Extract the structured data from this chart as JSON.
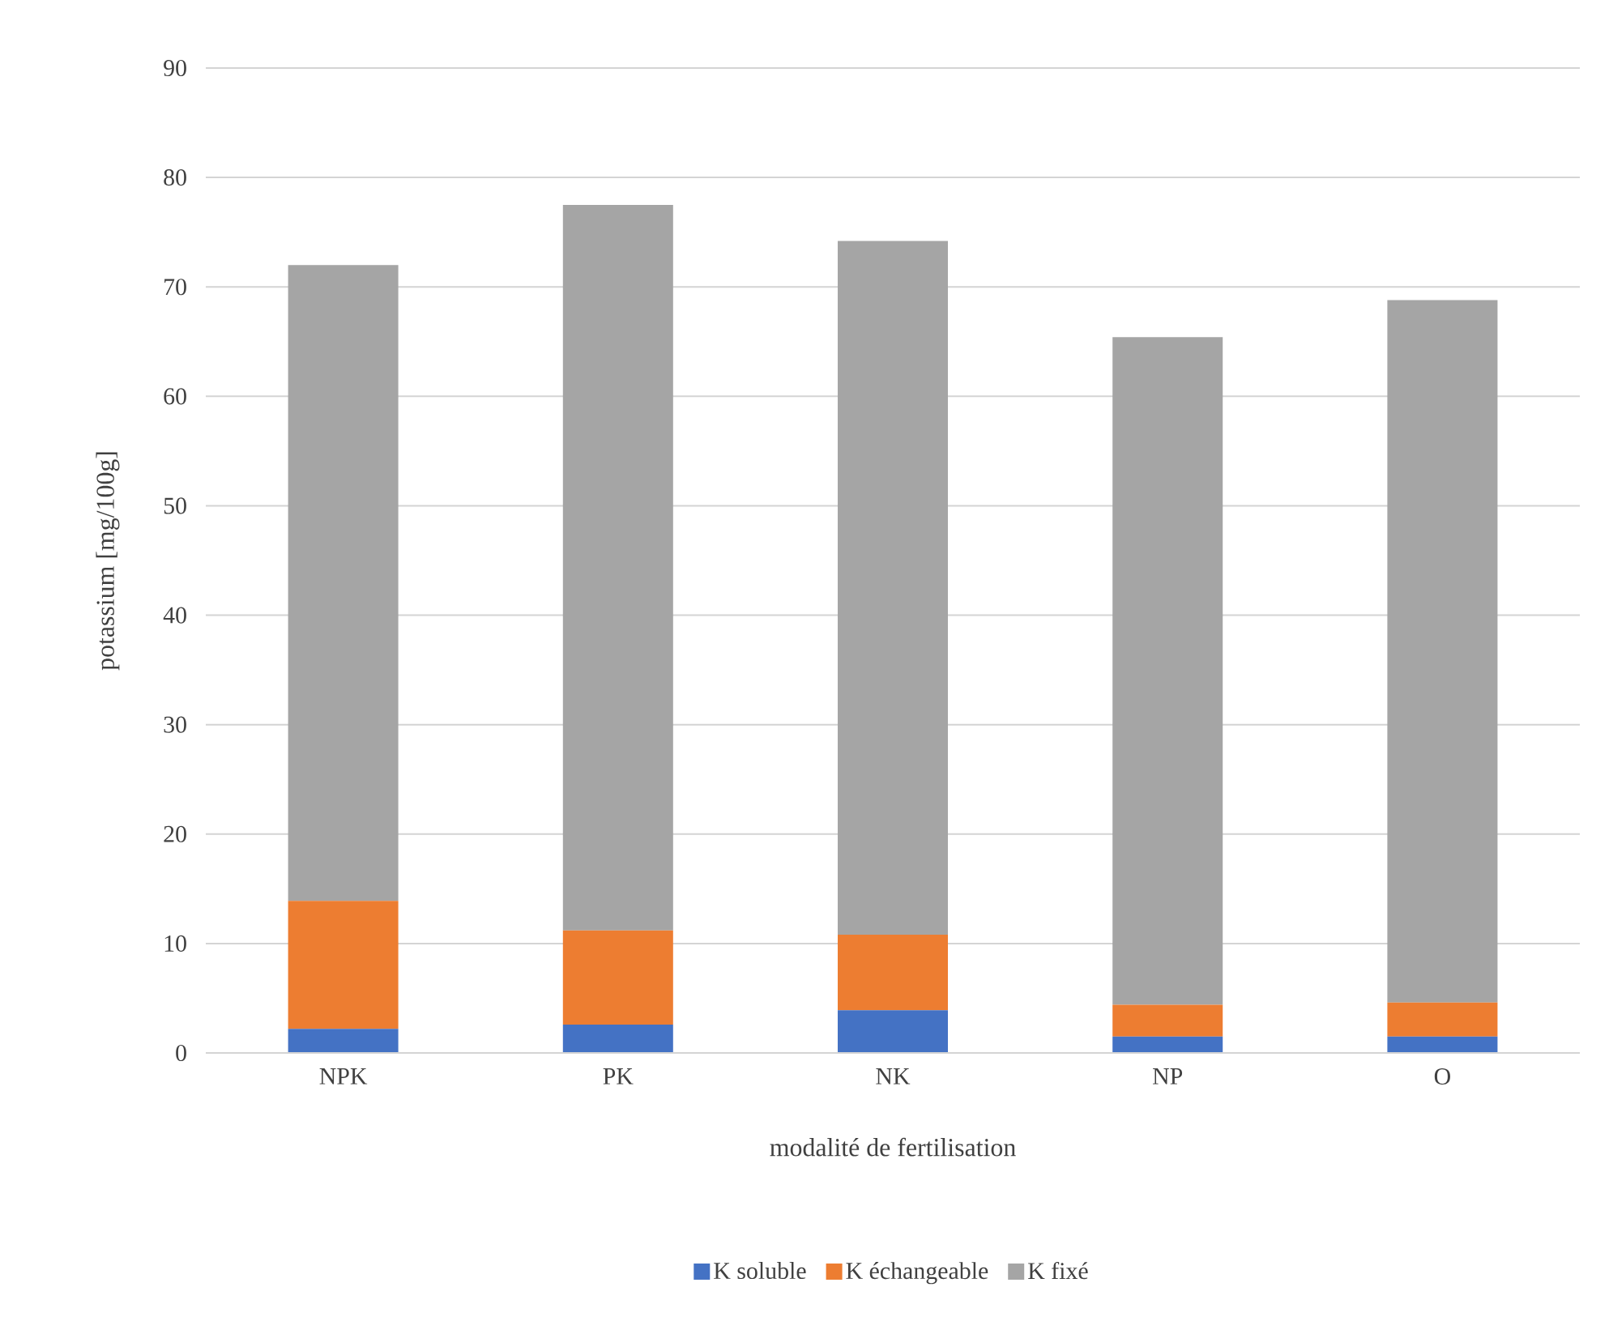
{
  "chart_data": {
    "type": "bar",
    "stacked": true,
    "xlabel": "modalité de fertilisation",
    "ylabel": "potassium [mg/100g]",
    "categories": [
      "NPK",
      "PK",
      "NK",
      "NP",
      "O"
    ],
    "series": [
      {
        "name": "K soluble",
        "color": "#4472c4",
        "values": [
          2.2,
          2.6,
          3.9,
          1.5,
          1.5
        ]
      },
      {
        "name": "K échangeable",
        "color": "#ed7d31",
        "values": [
          11.7,
          8.6,
          6.9,
          2.9,
          3.1
        ]
      },
      {
        "name": "K fixé",
        "color": "#a5a5a5",
        "values": [
          58.1,
          66.3,
          63.4,
          61.0,
          64.2
        ]
      }
    ],
    "ylim": [
      0,
      90
    ],
    "yticks": [
      0,
      10,
      20,
      30,
      40,
      50,
      60,
      70,
      80,
      90
    ],
    "grid": "y",
    "legend": "bottom"
  }
}
